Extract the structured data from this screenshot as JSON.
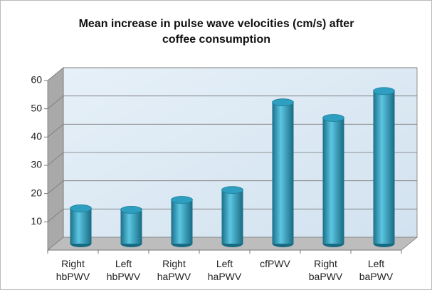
{
  "chart_data": {
    "type": "bar",
    "title": "Mean increase in pulse wave velocities (cm/s) after coffee consumption",
    "categories": [
      "Right hbPWV",
      "Left hbPWV",
      "Right haPWV",
      "Left haPWV",
      "cfPWV",
      "Right baPWV",
      "Left baPWV"
    ],
    "values": [
      12.5,
      12,
      15.5,
      19,
      50,
      44.5,
      54
    ],
    "color": "#2e9fc0",
    "ylim": [
      0,
      60
    ],
    "yticks": [
      10,
      20,
      30,
      40,
      50,
      60
    ],
    "grid": true
  }
}
